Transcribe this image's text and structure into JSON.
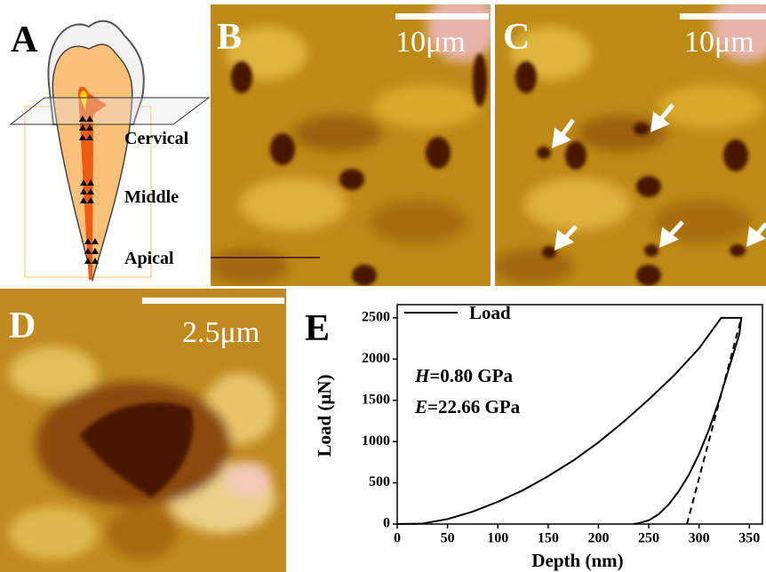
{
  "panels": {
    "a": {
      "label": "A",
      "regions": [
        "Cervical",
        "Middle",
        "Apical"
      ]
    },
    "b": {
      "label": "B",
      "scale": "10μm"
    },
    "c": {
      "label": "C",
      "scale": "10μm"
    },
    "d": {
      "label": "D",
      "scale": "2.5μm"
    }
  },
  "chart_data": {
    "type": "line",
    "label": "E",
    "xlabel": "Depth (nm)",
    "ylabel": "Load (μN)",
    "annotations": [
      {
        "symbol": "H",
        "text": "=0.80 GPa"
      },
      {
        "symbol": "E",
        "text": "=22.66 GPa"
      }
    ],
    "xlim": [
      0,
      363
    ],
    "ylim": [
      0,
      2660
    ],
    "xticks": [
      0,
      50,
      100,
      150,
      200,
      250,
      300,
      350
    ],
    "yticks": [
      0,
      500,
      1000,
      1500,
      2000,
      2500
    ],
    "series": [
      {
        "name": "Load",
        "color": "#000000",
        "x": [
          0,
          25,
          50,
          75,
          100,
          125,
          150,
          175,
          200,
          225,
          250,
          275,
          300,
          322,
          342,
          340,
          330,
          320,
          310,
          300,
          290,
          280,
          270,
          260,
          250,
          240,
          235
        ],
        "values": [
          0,
          5,
          60,
          150,
          270,
          410,
          580,
          770,
          990,
          1240,
          1510,
          1800,
          2130,
          2500,
          2500,
          2300,
          1900,
          1500,
          1150,
          850,
          600,
          400,
          240,
          120,
          45,
          10,
          0
        ]
      },
      {
        "color": "#000000",
        "dashed": true,
        "x": [
          288,
          342
        ],
        "values": [
          0,
          2500
        ]
      }
    ]
  }
}
